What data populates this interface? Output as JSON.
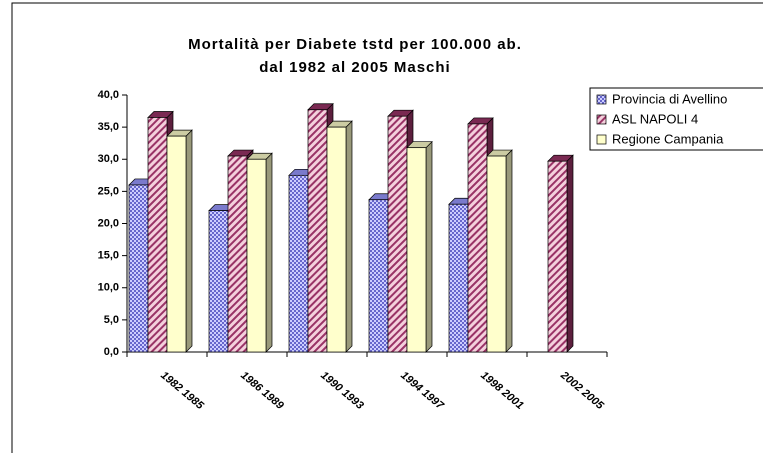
{
  "chart_data": {
    "type": "bar3d",
    "title": "Mortalità per Diabete tstd per 100.000 ab.",
    "subtitle": "dal 1982 al 2005 Maschi",
    "categories": [
      "1982 1985",
      "1986 1989",
      "1990 1993",
      "1994 1997",
      "1998 2001",
      "2002 2005"
    ],
    "series": [
      {
        "name": "Provincia di Avellino",
        "color": "#9999ff",
        "values": [
          26.0,
          22.0,
          27.5,
          23.7,
          23.0,
          null
        ]
      },
      {
        "name": "ASL NAPOLI 4",
        "color": "#993366",
        "values": [
          36.5,
          30.5,
          37.7,
          36.7,
          35.5,
          29.7
        ]
      },
      {
        "name": "Regione Campania",
        "color": "#ffffcc",
        "values": [
          33.6,
          30.0,
          35.0,
          31.8,
          30.5,
          null
        ]
      }
    ],
    "ylim": [
      0,
      40
    ],
    "yticks": [
      {
        "value": 0,
        "label": "0,0"
      },
      {
        "value": 5,
        "label": "5,0"
      },
      {
        "value": 10,
        "label": "10,0"
      },
      {
        "value": 15,
        "label": "15,0"
      },
      {
        "value": 20,
        "label": "20,0"
      },
      {
        "value": 25,
        "label": "25,0"
      },
      {
        "value": 30,
        "label": "30,0"
      },
      {
        "value": 35,
        "label": "35,0"
      },
      {
        "value": 40,
        "label": "40,0"
      }
    ],
    "legend": "top-right"
  }
}
